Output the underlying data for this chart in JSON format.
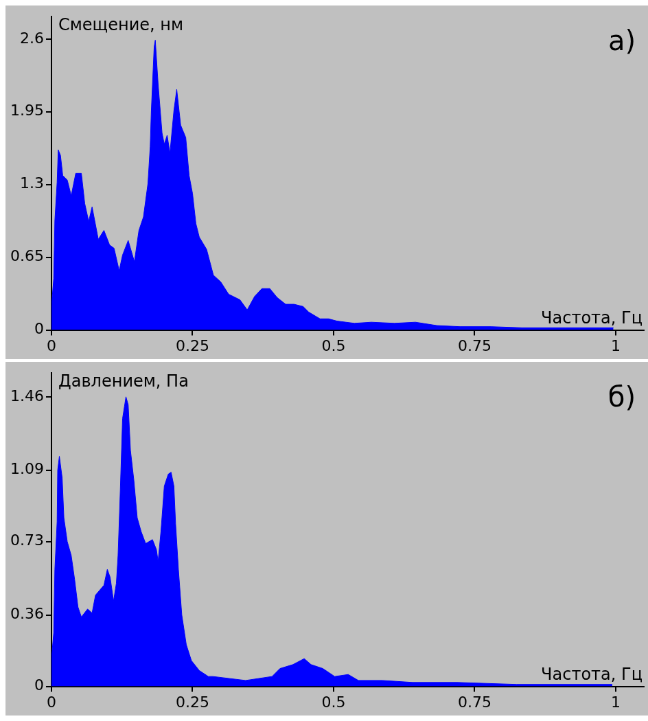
{
  "chart_data": [
    {
      "type": "area",
      "ylabel": "Смещение, нм",
      "xlabel": "Частота, Гц",
      "annotations": [
        "а)"
      ],
      "xlim": [
        0,
        1.05
      ],
      "xticks": [
        0,
        0.25,
        0.5,
        0.75,
        1
      ],
      "ylim": [
        0,
        2.8
      ],
      "yticks": [
        0,
        0.65,
        1.3,
        1.95,
        2.6
      ],
      "series": [
        {
          "color": "#0000ff",
          "x": [
            0,
            0.004,
            0.006,
            0.01,
            0.012,
            0.016,
            0.02,
            0.028,
            0.035,
            0.043,
            0.053,
            0.059,
            0.066,
            0.072,
            0.083,
            0.093,
            0.103,
            0.111,
            0.12,
            0.126,
            0.136,
            0.147,
            0.155,
            0.163,
            0.171,
            0.175,
            0.177,
            0.182,
            0.184,
            0.189,
            0.196,
            0.2,
            0.205,
            0.21,
            0.217,
            0.222,
            0.229,
            0.238,
            0.244,
            0.25,
            0.256,
            0.262,
            0.275,
            0.287,
            0.3,
            0.314,
            0.334,
            0.347,
            0.36,
            0.373,
            0.387,
            0.4,
            0.415,
            0.43,
            0.446,
            0.456,
            0.476,
            0.491,
            0.506,
            0.537,
            0.567,
            0.608,
            0.645,
            0.683,
            0.724,
            0.779,
            0.834,
            0.911,
            0.996
          ],
          "values": [
            0.21,
            0.46,
            0.98,
            1.32,
            1.61,
            1.56,
            1.38,
            1.34,
            1.2,
            1.4,
            1.4,
            1.13,
            0.97,
            1.1,
            0.81,
            0.89,
            0.76,
            0.73,
            0.53,
            0.67,
            0.8,
            0.61,
            0.89,
            1.01,
            1.31,
            1.64,
            1.96,
            2.53,
            2.59,
            2.2,
            1.76,
            1.66,
            1.74,
            1.58,
            1.96,
            2.15,
            1.83,
            1.72,
            1.38,
            1.22,
            0.95,
            0.83,
            0.72,
            0.49,
            0.43,
            0.32,
            0.27,
            0.18,
            0.3,
            0.37,
            0.37,
            0.29,
            0.23,
            0.23,
            0.21,
            0.16,
            0.1,
            0.1,
            0.08,
            0.06,
            0.07,
            0.06,
            0.07,
            0.04,
            0.03,
            0.03,
            0.02,
            0.02,
            0.02
          ]
        }
      ]
    },
    {
      "type": "area",
      "ylabel": "Давлением, Па",
      "xlabel": "Частота, Гц",
      "annotations": [
        "б)"
      ],
      "xlim": [
        0,
        1.05
      ],
      "xticks": [
        0,
        0.25,
        0.5,
        0.75,
        1
      ],
      "ylim": [
        0,
        1.58
      ],
      "yticks": [
        0,
        0.36,
        0.73,
        1.09,
        1.46
      ],
      "series": [
        {
          "color": "#0000ff",
          "x": [
            0,
            0.004,
            0.006,
            0.01,
            0.011,
            0.014,
            0.019,
            0.022,
            0.028,
            0.035,
            0.041,
            0.047,
            0.053,
            0.064,
            0.072,
            0.078,
            0.087,
            0.093,
            0.099,
            0.104,
            0.11,
            0.115,
            0.118,
            0.122,
            0.126,
            0.132,
            0.136,
            0.14,
            0.146,
            0.152,
            0.159,
            0.167,
            0.179,
            0.186,
            0.189,
            0.194,
            0.2,
            0.207,
            0.212,
            0.217,
            0.22,
            0.225,
            0.231,
            0.239,
            0.248,
            0.262,
            0.278,
            0.286,
            0.344,
            0.391,
            0.405,
            0.428,
            0.448,
            0.46,
            0.481,
            0.502,
            0.526,
            0.544,
            0.587,
            0.64,
            0.719,
            0.824,
            0.994
          ],
          "values": [
            0.14,
            0.27,
            0.59,
            0.83,
            1.09,
            1.16,
            1.05,
            0.85,
            0.73,
            0.66,
            0.54,
            0.4,
            0.35,
            0.39,
            0.37,
            0.46,
            0.49,
            0.51,
            0.59,
            0.55,
            0.43,
            0.52,
            0.66,
            0.99,
            1.35,
            1.46,
            1.42,
            1.19,
            1.04,
            0.85,
            0.78,
            0.72,
            0.74,
            0.69,
            0.63,
            0.78,
            1.01,
            1.07,
            1.08,
            1.01,
            0.82,
            0.59,
            0.36,
            0.21,
            0.13,
            0.08,
            0.05,
            0.05,
            0.03,
            0.05,
            0.09,
            0.11,
            0.14,
            0.11,
            0.09,
            0.05,
            0.06,
            0.03,
            0.03,
            0.02,
            0.02,
            0.01,
            0.01
          ]
        }
      ]
    }
  ]
}
